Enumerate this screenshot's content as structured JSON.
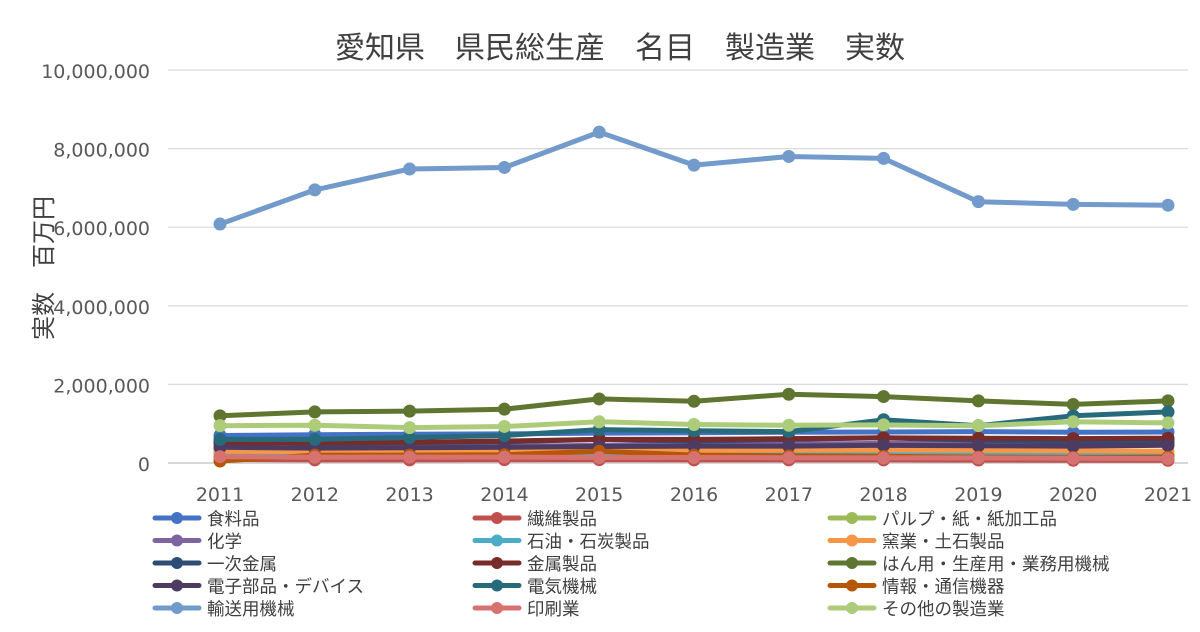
{
  "chart_data": {
    "type": "line",
    "title": "愛知県　県民総生産　名目　製造業　実数",
    "xlabel": "",
    "ylabel": "実数　百万円",
    "ylim": [
      0,
      10000000
    ],
    "yticks": [
      0,
      2000000,
      4000000,
      6000000,
      8000000,
      10000000
    ],
    "ytick_labels": [
      "0",
      "2,000,000",
      "4,000,000",
      "6,000,000",
      "8,000,000",
      "10,000,000"
    ],
    "grid": true,
    "legend_position": "bottom",
    "legend_columns": 3,
    "categories": [
      "2011",
      "2012",
      "2013",
      "2014",
      "2015",
      "2016",
      "2017",
      "2018",
      "2019",
      "2020",
      "2021"
    ],
    "series": [
      {
        "name": "食料品",
        "color": "#4472C4",
        "values": [
          700000,
          720000,
          730000,
          740000,
          760000,
          770000,
          780000,
          790000,
          800000,
          780000,
          790000
        ]
      },
      {
        "name": "繊維製品",
        "color": "#C0504D",
        "values": [
          90000,
          80000,
          80000,
          85000,
          85000,
          80000,
          80000,
          80000,
          75000,
          70000,
          70000
        ]
      },
      {
        "name": "パルプ・紙・紙加工品",
        "color": "#9BBB59",
        "values": [
          150000,
          150000,
          155000,
          160000,
          165000,
          165000,
          170000,
          170000,
          165000,
          160000,
          165000
        ]
      },
      {
        "name": "化学",
        "color": "#8064A2",
        "values": [
          350000,
          380000,
          400000,
          420000,
          450000,
          470000,
          480000,
          500000,
          490000,
          480000,
          500000
        ]
      },
      {
        "name": "石油・石炭製品",
        "color": "#4BACC6",
        "values": [
          250000,
          250000,
          250000,
          240000,
          230000,
          230000,
          235000,
          240000,
          230000,
          200000,
          210000
        ]
      },
      {
        "name": "窯業・土石製品",
        "color": "#F79646",
        "values": [
          300000,
          290000,
          300000,
          310000,
          320000,
          320000,
          330000,
          330000,
          320000,
          310000,
          300000
        ]
      },
      {
        "name": "一次金属",
        "color": "#2C4D75",
        "values": [
          550000,
          500000,
          520000,
          540000,
          600000,
          560000,
          600000,
          640000,
          580000,
          550000,
          560000
        ]
      },
      {
        "name": "金属製品",
        "color": "#772C2A",
        "values": [
          500000,
          520000,
          530000,
          560000,
          600000,
          600000,
          620000,
          640000,
          630000,
          620000,
          630000
        ]
      },
      {
        "name": "はん用・生産用・業務用機械",
        "color": "#5F7530",
        "values": [
          1200000,
          1300000,
          1320000,
          1370000,
          1630000,
          1570000,
          1750000,
          1690000,
          1580000,
          1490000,
          1580000
        ]
      },
      {
        "name": "電子部品・デバイス",
        "color": "#4D3B62",
        "values": [
          400000,
          380000,
          390000,
          400000,
          420000,
          430000,
          430000,
          450000,
          440000,
          430000,
          450000
        ]
      },
      {
        "name": "電気機械",
        "color": "#276A7C",
        "values": [
          600000,
          600000,
          650000,
          700000,
          850000,
          820000,
          800000,
          1100000,
          950000,
          1200000,
          1300000
        ]
      },
      {
        "name": "情報・通信機器",
        "color": "#B65708",
        "values": [
          50000,
          200000,
          200000,
          210000,
          300000,
          200000,
          180000,
          170000,
          150000,
          140000,
          150000
        ]
      },
      {
        "name": "輸送用機械",
        "color": "#729ACA",
        "values": [
          6080000,
          6950000,
          7480000,
          7520000,
          8420000,
          7580000,
          7800000,
          7750000,
          6650000,
          6580000,
          6560000
        ]
      },
      {
        "name": "印刷業",
        "color": "#D6726F",
        "values": [
          160000,
          150000,
          150000,
          150000,
          140000,
          140000,
          135000,
          130000,
          130000,
          120000,
          115000
        ]
      },
      {
        "name": "その他の製造業",
        "color": "#ADCC7A",
        "values": [
          950000,
          960000,
          900000,
          930000,
          1050000,
          980000,
          960000,
          970000,
          950000,
          1050000,
          1020000
        ]
      }
    ]
  }
}
